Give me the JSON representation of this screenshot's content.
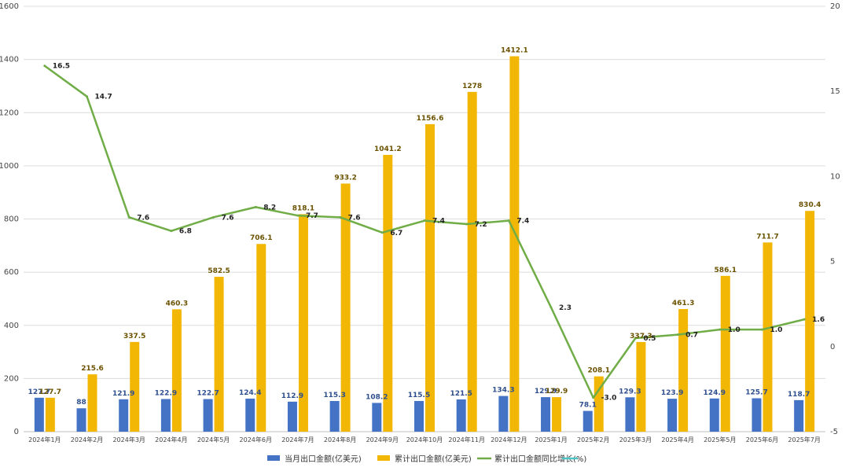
{
  "chart_data": {
    "type": "bar",
    "categories": [
      "2024年1月",
      "2024年2月",
      "2024年3月",
      "2024年4月",
      "2024年5月",
      "2024年6月",
      "2024年7月",
      "2024年8月",
      "2024年9月",
      "2024年10月",
      "2024年11月",
      "2024年12月",
      "2025年1月",
      "2025年2月",
      "2025年3月",
      "2025年4月",
      "2025年5月",
      "2025年6月",
      "2025年7月"
    ],
    "series": [
      {
        "name": "当月出口金额(亿美元)",
        "kind": "bar",
        "axis": "left",
        "color": "#4472c4",
        "label_color": "#2f4f8f",
        "values": [
          127.7,
          88,
          121.9,
          122.9,
          122.7,
          124.4,
          112.9,
          115.3,
          108.2,
          115.5,
          121.5,
          134.3,
          129.9,
          78.1,
          129.3,
          123.9,
          124.9,
          125.7,
          118.7
        ],
        "labels": [
          "127.7",
          "88",
          "121.9",
          "122.9",
          "122.7",
          "124.4",
          "112.9",
          "115.3",
          "108.2",
          "115.5",
          "121.5",
          "134.3",
          "129.9",
          "78.1",
          "129.3",
          "123.9",
          "124.9",
          "125.7",
          "118.7"
        ]
      },
      {
        "name": "累计出口金额(亿美元)",
        "kind": "bar",
        "axis": "left",
        "color": "#f2b705",
        "label_color": "#6b5200",
        "values": [
          127.7,
          215.6,
          337.5,
          460.3,
          582.5,
          706.1,
          818.1,
          933.2,
          1041.2,
          1156.6,
          1278,
          1412.1,
          129.9,
          208.1,
          337.3,
          461.3,
          586.1,
          711.7,
          830.4
        ],
        "labels": [
          "127.7",
          "215.6",
          "337.5",
          "460.3",
          "582.5",
          "706.1",
          "818.1",
          "933.2",
          "1041.2",
          "1156.6",
          "1278",
          "1412.1",
          "129.9",
          "208.1",
          "337.3",
          "461.3",
          "586.1",
          "711.7",
          "830.4"
        ]
      },
      {
        "name": "累计出口金额同比增长(%)",
        "kind": "line",
        "axis": "right",
        "color": "#70ad47",
        "label_color": "#222222",
        "values": [
          16.5,
          14.7,
          7.6,
          6.8,
          7.6,
          8.2,
          7.7,
          7.6,
          6.7,
          7.4,
          7.2,
          7.4,
          2.3,
          -3.0,
          0.5,
          0.7,
          1.0,
          1.0,
          1.6
        ],
        "labels": [
          "16.5",
          "14.7",
          "7.6",
          "6.8",
          "7.6",
          "8.2",
          "7.7",
          "7.6",
          "6.7",
          "7.4",
          "7.2",
          "7.4",
          "2.3",
          "-3.0",
          "0.5",
          "0.7",
          "1.0",
          "1.0",
          "1.6"
        ]
      }
    ],
    "extra_legend": {
      "name": "",
      "color": "#4bc6c6"
    },
    "ylim_left": [
      0,
      1600
    ],
    "yticks_left": [
      "0",
      "200",
      "400",
      "600",
      "800",
      "1000",
      "1200",
      "1400",
      "1600"
    ],
    "ylim_right": [
      -5,
      20
    ],
    "yticks_right": [
      "-5",
      "0",
      "5",
      "10",
      "15",
      "20"
    ],
    "grid": true,
    "legend_position": "bottom-center"
  }
}
